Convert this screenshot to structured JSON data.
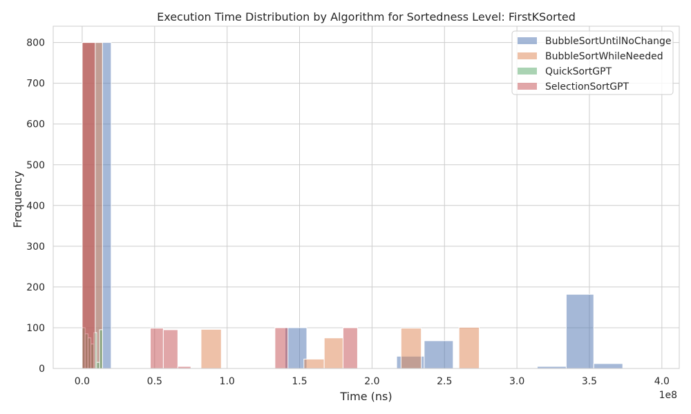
{
  "chart_data": {
    "type": "bar",
    "title": "Execution Time Distribution by Algorithm for Sortedness Level: FirstKSorted",
    "xlabel": "Time (ns)",
    "ylabel": "Frequency",
    "x_offset_label": "1e8",
    "x_scale_factor": 100000000,
    "xlim": [
      -0.2,
      4.12
    ],
    "ylim": [
      0,
      840
    ],
    "x_ticks": [
      0.0,
      0.5,
      1.0,
      1.5,
      2.0,
      2.5,
      3.0,
      3.5,
      4.0
    ],
    "x_tick_labels": [
      "0.0",
      "0.5",
      "1.0",
      "1.5",
      "2.0",
      "2.5",
      "3.0",
      "3.5",
      "4.0"
    ],
    "y_ticks": [
      0,
      100,
      200,
      300,
      400,
      500,
      600,
      700,
      800
    ],
    "y_tick_labels": [
      "0",
      "100",
      "200",
      "300",
      "400",
      "500",
      "600",
      "700",
      "800"
    ],
    "grid": true,
    "legend_position": "top-right",
    "series": [
      {
        "name": "BubbleSortUntilNoChange",
        "color": "#4c72b0",
        "bins": [
          {
            "x0": 0.0,
            "x1": 0.2,
            "count": 800
          },
          {
            "x0": 1.4,
            "x1": 1.55,
            "count": 100
          },
          {
            "x0": 2.17,
            "x1": 2.36,
            "count": 30
          },
          {
            "x0": 2.36,
            "x1": 2.56,
            "count": 68
          },
          {
            "x0": 3.14,
            "x1": 3.34,
            "count": 5
          },
          {
            "x0": 3.34,
            "x1": 3.53,
            "count": 182
          },
          {
            "x0": 3.53,
            "x1": 3.73,
            "count": 12
          }
        ]
      },
      {
        "name": "BubbleSortWhileNeeded",
        "color": "#dd8452",
        "bins": [
          {
            "x0": 0.0,
            "x1": 0.14,
            "count": 800
          },
          {
            "x0": 0.82,
            "x1": 0.96,
            "count": 96
          },
          {
            "x0": 1.53,
            "x1": 1.67,
            "count": 23
          },
          {
            "x0": 1.67,
            "x1": 1.8,
            "count": 75
          },
          {
            "x0": 2.2,
            "x1": 2.34,
            "count": 99
          },
          {
            "x0": 2.6,
            "x1": 2.74,
            "count": 101
          }
        ]
      },
      {
        "name": "QuickSortGPT",
        "color": "#55a868",
        "bins": [
          {
            "x0": 0.0,
            "x1": 0.02,
            "count": 100
          },
          {
            "x0": 0.02,
            "x1": 0.04,
            "count": 85
          },
          {
            "x0": 0.04,
            "x1": 0.06,
            "count": 75
          },
          {
            "x0": 0.06,
            "x1": 0.08,
            "count": 60
          },
          {
            "x0": 0.08,
            "x1": 0.1,
            "count": 88
          },
          {
            "x0": 0.1,
            "x1": 0.12,
            "count": 15
          },
          {
            "x0": 0.12,
            "x1": 0.14,
            "count": 95
          }
        ]
      },
      {
        "name": "SelectionSortGPT",
        "color": "#c44e52",
        "bins": [
          {
            "x0": 0.0,
            "x1": 0.09,
            "count": 800
          },
          {
            "x0": 0.47,
            "x1": 0.56,
            "count": 99
          },
          {
            "x0": 0.56,
            "x1": 0.66,
            "count": 95
          },
          {
            "x0": 0.66,
            "x1": 0.75,
            "count": 5
          },
          {
            "x0": 1.33,
            "x1": 1.42,
            "count": 100
          },
          {
            "x0": 1.8,
            "x1": 1.9,
            "count": 100
          }
        ]
      }
    ]
  }
}
